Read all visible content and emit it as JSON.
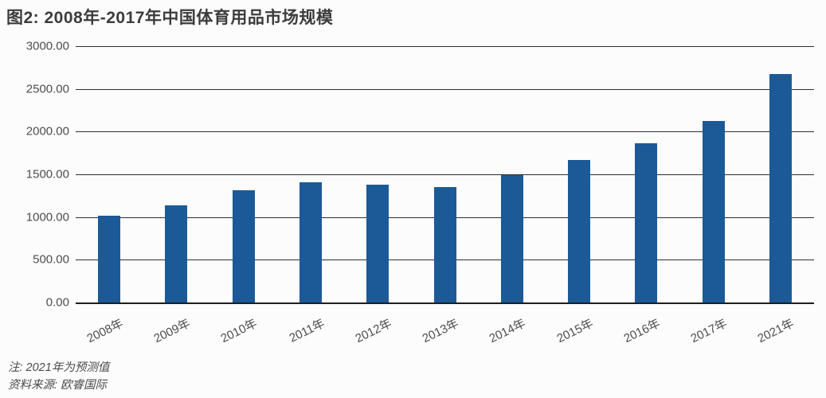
{
  "page": {
    "title": "图2: 2008年-2017年中国体育用品市场规模",
    "note_line1": "注: 2021年为预测值",
    "note_line2": "资料来源: 欧睿国际"
  },
  "chart_data": {
    "type": "bar",
    "title": "图2: 2008年-2017年中国体育用品市场规模",
    "categories": [
      "2008年",
      "2009年",
      "2010年",
      "2011年",
      "2012年",
      "2013年",
      "2014年",
      "2015年",
      "2016年",
      "2017年",
      "2021年"
    ],
    "values": [
      1020,
      1135,
      1310,
      1410,
      1380,
      1355,
      1490,
      1670,
      1865,
      2120,
      2670
    ],
    "xlabel": "",
    "ylabel": "",
    "ylim": [
      0,
      3000
    ],
    "ytick_step": 500,
    "ytick_labels_top_to_bottom": [
      "3000.00",
      "2500.00",
      "2000.00",
      "1500.00",
      "1000.00",
      "500.00",
      "0.00"
    ],
    "grid": true,
    "legend": "none",
    "bar_color": "#1B5A96",
    "x_label_rotation_deg": -26,
    "annotations": [
      "注: 2021年为预测值",
      "资料来源: 欧睿国际"
    ]
  }
}
